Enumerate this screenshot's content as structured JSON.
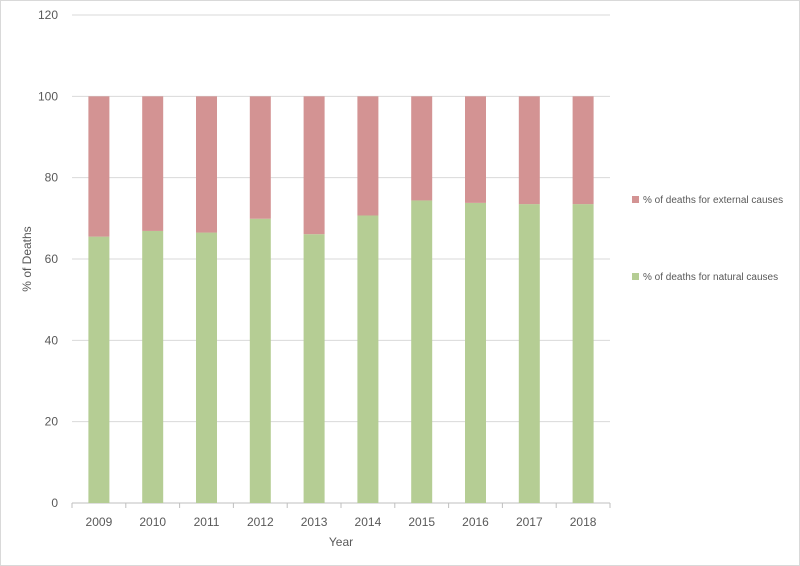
{
  "chart_data": {
    "type": "bar",
    "stacked": true,
    "title": "",
    "xlabel": "Year",
    "ylabel": "% of Deaths",
    "ylim": [
      0,
      120
    ],
    "yticks": [
      0,
      20,
      40,
      60,
      80,
      100,
      120
    ],
    "grid": true,
    "legend_position": "right",
    "categories": [
      "2009",
      "2010",
      "2011",
      "2012",
      "2013",
      "2014",
      "2015",
      "2016",
      "2017",
      "2018"
    ],
    "series": [
      {
        "name": "% of deaths for natural causes",
        "color": "#b5cd94",
        "values": [
          65.5,
          66.9,
          66.5,
          69.9,
          66.1,
          70.7,
          74.4,
          73.8,
          73.5,
          73.5
        ]
      },
      {
        "name": "% of deaths for external causes",
        "color": "#d39393",
        "values": [
          34.5,
          33.1,
          33.5,
          30.1,
          33.9,
          29.3,
          25.6,
          26.2,
          26.5,
          26.5
        ]
      }
    ]
  }
}
